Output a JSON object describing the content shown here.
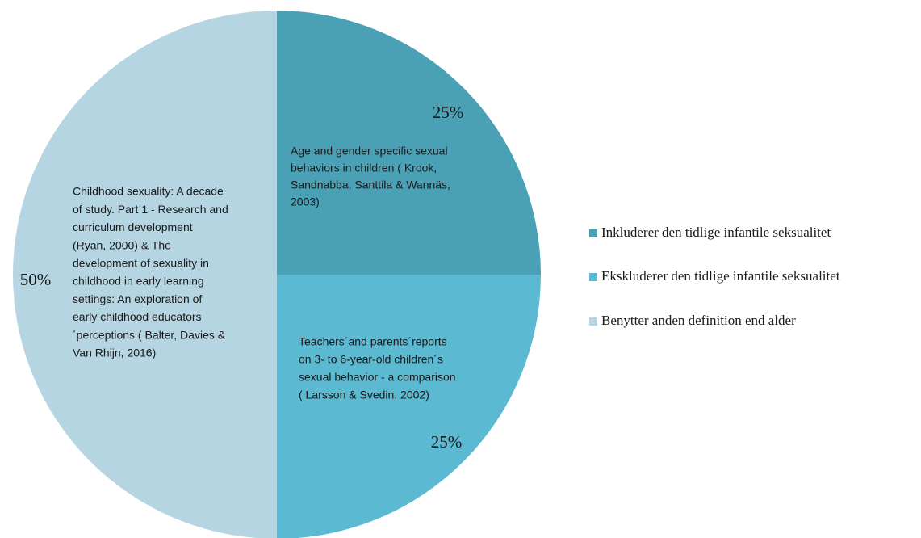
{
  "chart_data": {
    "type": "pie",
    "categories": [
      "Inkluderer den tidlige infantile seksualitet",
      "Ekskluderer den tidlige infantile seksualitet",
      "Benytter anden definition end alder"
    ],
    "values": [
      25,
      25,
      50
    ],
    "value_labels": [
      "25%",
      "25%",
      "50%"
    ],
    "colors": [
      "#4aa0b5",
      "#5bb9d1",
      "#b5d5e2"
    ],
    "annotations": [
      [
        "Age and gender specific sexual",
        "behaviors in children ( Krook,",
        "Sandnabba, Santtila & Wannäs,",
        "2003)"
      ],
      [
        "Teachers´and parents´reports",
        "on 3- to 6-year-old children´s",
        "sexual behavior - a comparison",
        "( Larsson & Svedin, 2002)"
      ],
      [
        "Childhood sexuality: A decade",
        "of study. Part 1 - Research and",
        "curriculum development",
        "(Ryan, 2000) & The",
        "development of sexuality in",
        "childhood in early learning",
        "settings: An exploration of",
        "early childhood educators",
        "´perceptions ( Balter, Davies &",
        "Van Rhijn, 2016)"
      ]
    ],
    "legend": "right"
  }
}
